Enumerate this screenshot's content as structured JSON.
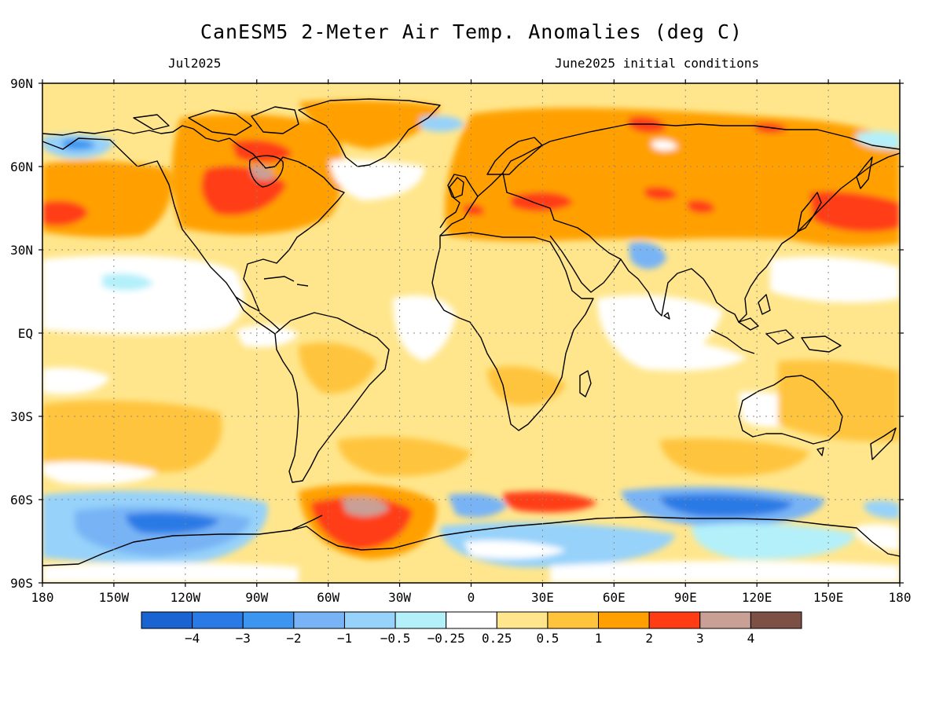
{
  "title": "CanESM5 2-Meter Air Temp. Anomalies (deg C)",
  "subtitle_left": "Jul2025",
  "subtitle_right": "June2025 initial conditions",
  "lat_labels": [
    "90N",
    "60N",
    "30N",
    "EQ",
    "30S",
    "60S",
    "90S"
  ],
  "lon_labels": [
    "180",
    "150W",
    "120W",
    "90W",
    "60W",
    "30W",
    "0",
    "30E",
    "60E",
    "90E",
    "120E",
    "150E",
    "180"
  ],
  "colorbar": {
    "colors": [
      "#1a64d2",
      "#2a7ae6",
      "#3c96f0",
      "#78b4f5",
      "#96d2fa",
      "#b4f0fa",
      "#ffffff",
      "#ffe68c",
      "#ffc43c",
      "#ffa000",
      "#ff3c14",
      "#c8a096",
      "#7d5046"
    ],
    "labels": [
      "−4",
      "−3",
      "−2",
      "−1",
      "−0.5",
      "−0.25",
      "0.25",
      "0.5",
      "1",
      "2",
      "3",
      "4"
    ]
  }
}
